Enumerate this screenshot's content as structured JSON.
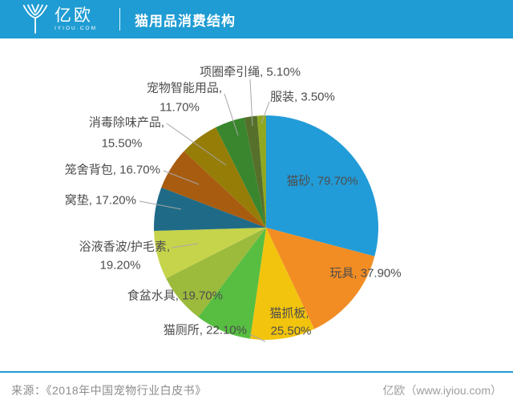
{
  "header": {
    "logo_text": "亿欧",
    "logo_subtext": "IYIOU·COM",
    "title": "猫用品消费结构",
    "bar_color": "#1F9CD3"
  },
  "chart_data": {
    "type": "pie",
    "title": "猫用品消费结构",
    "start_angle_deg": -90,
    "direction": "clockwise",
    "label_color": "#4D4D4D",
    "leader_line_color": "#A6A6A6",
    "series": [
      {
        "name": "猫砂",
        "value": 79.7,
        "label": "猫砂, 79.70%",
        "color": "#229CD8"
      },
      {
        "name": "玩具",
        "value": 37.9,
        "label": "玩具, 37.90%",
        "color": "#F28D24"
      },
      {
        "name": "猫抓板",
        "value": 25.5,
        "label": "猫抓板, 25.50%",
        "color": "#F2C40E"
      },
      {
        "name": "猫厕所",
        "value": 22.1,
        "label": "猫厕所, 22.10%",
        "color": "#57BE41"
      },
      {
        "name": "食盆水具",
        "value": 19.7,
        "label": "食盆水具, 19.70%",
        "color": "#9CBA3C"
      },
      {
        "name": "浴液香波/护毛素",
        "value": 19.2,
        "label": "浴液香波/护毛素, 19.20%",
        "color": "#C6D44B"
      },
      {
        "name": "窝垫",
        "value": 17.2,
        "label": "窝垫, 17.20%",
        "color": "#1F6B87"
      },
      {
        "name": "笼舍背包",
        "value": 16.7,
        "label": "笼舍背包, 16.70%",
        "color": "#A85C10"
      },
      {
        "name": "消毒除味产品",
        "value": 15.5,
        "label": "消毒除味产品, 15.50%",
        "color": "#967D08"
      },
      {
        "name": "宠物智能用品",
        "value": 11.7,
        "label": "宠物智能用品, 11.70%",
        "color": "#3A862E"
      },
      {
        "name": "项圈牵引绳",
        "value": 5.1,
        "label": "项圈牵引绳, 5.10%",
        "color": "#56702B"
      },
      {
        "name": "服装",
        "value": 3.5,
        "label": "服装, 3.50%",
        "color": "#8FA821"
      }
    ]
  },
  "footer": {
    "source": "来源：《2018年中国宠物行业白皮书》",
    "credit": "亿欧（www.iyiou.com）"
  }
}
